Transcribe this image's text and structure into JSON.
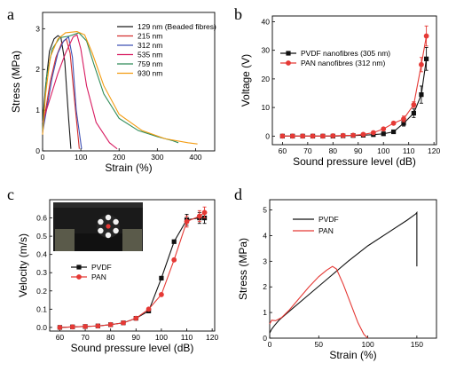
{
  "chart_data": [
    {
      "panel": "a",
      "type": "line",
      "xlabel": "Strain (%)",
      "ylabel": "Stress (MPa)",
      "xlim": [
        0,
        450
      ],
      "ylim": [
        0,
        3.4
      ],
      "xticks": [
        0,
        100,
        200,
        300,
        400
      ],
      "yticks": [
        0,
        1,
        2,
        3
      ],
      "legend": "top-right",
      "series": [
        {
          "name": "129 nm (Beaded fibres)",
          "color": "#1a1a1a",
          "points": [
            [
              0,
              0.7
            ],
            [
              8,
              1.6
            ],
            [
              18,
              2.45
            ],
            [
              30,
              2.75
            ],
            [
              40,
              2.83
            ],
            [
              48,
              2.78
            ],
            [
              58,
              2.2
            ],
            [
              68,
              0.8
            ],
            [
              74,
              0.05
            ]
          ]
        },
        {
          "name": "215 nm",
          "color": "#d32f2f",
          "points": [
            [
              0,
              0.5
            ],
            [
              8,
              1.0
            ],
            [
              20,
              1.7
            ],
            [
              35,
              2.3
            ],
            [
              50,
              2.65
            ],
            [
              62,
              2.75
            ],
            [
              72,
              2.4
            ],
            [
              84,
              1.2
            ],
            [
              96,
              0.05
            ]
          ]
        },
        {
          "name": "312 nm",
          "color": "#3f51b5",
          "points": [
            [
              0,
              0.45
            ],
            [
              12,
              1.1
            ],
            [
              25,
              1.8
            ],
            [
              40,
              2.4
            ],
            [
              55,
              2.7
            ],
            [
              68,
              2.8
            ],
            [
              78,
              2.3
            ],
            [
              88,
              1.0
            ],
            [
              102,
              0.05
            ]
          ]
        },
        {
          "name": "535 nm",
          "color": "#d81b60",
          "points": [
            [
              0,
              0.7
            ],
            [
              20,
              1.3
            ],
            [
              40,
              1.9
            ],
            [
              60,
              2.4
            ],
            [
              80,
              2.8
            ],
            [
              90,
              2.85
            ],
            [
              100,
              2.5
            ],
            [
              115,
              1.6
            ],
            [
              140,
              0.7
            ],
            [
              175,
              0.2
            ],
            [
              195,
              0.05
            ]
          ]
        },
        {
          "name": "759 nm",
          "color": "#2e8b57",
          "points": [
            [
              0,
              0.5
            ],
            [
              10,
              1.8
            ],
            [
              25,
              2.5
            ],
            [
              45,
              2.78
            ],
            [
              70,
              2.82
            ],
            [
              95,
              2.9
            ],
            [
              115,
              2.7
            ],
            [
              135,
              2.1
            ],
            [
              160,
              1.4
            ],
            [
              200,
              0.8
            ],
            [
              250,
              0.5
            ],
            [
              300,
              0.35
            ],
            [
              340,
              0.25
            ],
            [
              355,
              0.2
            ]
          ]
        },
        {
          "name": "930 nm",
          "color": "#f39c12",
          "points": [
            [
              0,
              0.4
            ],
            [
              8,
              1.4
            ],
            [
              20,
              2.3
            ],
            [
              40,
              2.75
            ],
            [
              60,
              2.9
            ],
            [
              90,
              2.93
            ],
            [
              110,
              2.85
            ],
            [
              130,
              2.4
            ],
            [
              160,
              1.6
            ],
            [
              200,
              0.9
            ],
            [
              260,
              0.5
            ],
            [
              320,
              0.3
            ],
            [
              380,
              0.2
            ],
            [
              405,
              0.17
            ]
          ]
        }
      ]
    },
    {
      "panel": "b",
      "type": "line",
      "xlabel": "Sound pressure level (dB)",
      "ylabel": "Voltage (V)",
      "xlim": [
        56,
        121
      ],
      "ylim": [
        -3,
        42
      ],
      "xticks": [
        60,
        70,
        80,
        90,
        100,
        110,
        120
      ],
      "yticks": [
        0,
        10,
        20,
        30,
        40
      ],
      "legend": "top-left",
      "series": [
        {
          "name": "PVDF nanofibres (305 nm)",
          "color": "#111111",
          "marker": "square",
          "x": [
            60,
            64,
            68,
            72,
            76,
            80,
            84,
            88,
            92,
            96,
            100,
            104,
            108,
            112,
            115,
            117
          ],
          "y": [
            0,
            0,
            0,
            0,
            0,
            0,
            0.1,
            0.2,
            0.3,
            0.5,
            0.8,
            1.5,
            4.5,
            8.0,
            14.5,
            27.0
          ],
          "err": [
            0,
            0,
            0,
            0,
            0,
            0,
            0,
            0,
            0,
            0,
            0.3,
            0.5,
            1.0,
            1.5,
            3.0,
            4.0
          ]
        },
        {
          "name": "PAN nanofibres (312 nm)",
          "color": "#e53935",
          "marker": "circle",
          "x": [
            60,
            64,
            68,
            72,
            76,
            80,
            84,
            88,
            92,
            96,
            100,
            104,
            108,
            112,
            115,
            117
          ],
          "y": [
            0,
            0,
            0,
            0,
            0,
            0.1,
            0.2,
            0.3,
            0.6,
            1.2,
            2.5,
            4.5,
            6.0,
            11.0,
            25.0,
            35.0
          ],
          "err": [
            0,
            0,
            0,
            0,
            0,
            0,
            0,
            0,
            0,
            0,
            0.3,
            0.5,
            1.0,
            1.0,
            2.5,
            3.5
          ]
        }
      ]
    },
    {
      "panel": "c",
      "type": "line",
      "xlabel": "Sound pressure level (dB)",
      "ylabel": "Velocity (m/s)",
      "xlim": [
        56,
        121
      ],
      "ylim": [
        -0.02,
        0.7
      ],
      "xticks": [
        60,
        70,
        80,
        90,
        100,
        110,
        120
      ],
      "yticks": [
        0.0,
        0.1,
        0.2,
        0.3,
        0.4,
        0.5,
        0.6
      ],
      "legend": "center-left",
      "series": [
        {
          "name": "PVDF",
          "color": "#111111",
          "marker": "square",
          "x": [
            60,
            65,
            70,
            75,
            80,
            85,
            90,
            95,
            100,
            105,
            110,
            115,
            117
          ],
          "y": [
            0,
            0.003,
            0.005,
            0.008,
            0.015,
            0.025,
            0.05,
            0.09,
            0.27,
            0.47,
            0.59,
            0.6,
            0.6
          ],
          "err": [
            0,
            0,
            0,
            0,
            0,
            0,
            0,
            0,
            0,
            0,
            0.03,
            0.03,
            0.03
          ]
        },
        {
          "name": "PAN",
          "color": "#e53935",
          "marker": "circle",
          "x": [
            60,
            65,
            70,
            75,
            80,
            85,
            90,
            95,
            100,
            105,
            110,
            115,
            117
          ],
          "y": [
            0,
            0.003,
            0.005,
            0.008,
            0.015,
            0.025,
            0.05,
            0.1,
            0.18,
            0.37,
            0.58,
            0.61,
            0.63
          ],
          "err": [
            0,
            0,
            0,
            0,
            0,
            0,
            0,
            0,
            0,
            0,
            0.03,
            0.03,
            0.03
          ]
        }
      ]
    },
    {
      "panel": "d",
      "type": "line",
      "xlabel": "Strain (%)",
      "ylabel": "Stress (MPa)",
      "xlim": [
        0,
        170
      ],
      "ylim": [
        0,
        5.4
      ],
      "xticks": [
        0,
        50,
        100,
        150
      ],
      "yticks": [
        0,
        1,
        2,
        3,
        4,
        5
      ],
      "legend": "top-left",
      "series": [
        {
          "name": "PVDF",
          "color": "#111111",
          "points": [
            [
              0,
              0.2
            ],
            [
              2,
              0.35
            ],
            [
              5,
              0.5
            ],
            [
              10,
              0.72
            ],
            [
              20,
              1.05
            ],
            [
              40,
              1.7
            ],
            [
              60,
              2.35
            ],
            [
              80,
              3.0
            ],
            [
              100,
              3.6
            ],
            [
              120,
              4.1
            ],
            [
              140,
              4.6
            ],
            [
              149,
              4.85
            ],
            [
              150,
              4.9
            ],
            [
              150,
              2.8
            ]
          ]
        },
        {
          "name": "PAN",
          "color": "#e53935",
          "points": [
            [
              0,
              0.55
            ],
            [
              2,
              0.7
            ],
            [
              6,
              0.68
            ],
            [
              12,
              0.8
            ],
            [
              20,
              1.1
            ],
            [
              30,
              1.55
            ],
            [
              40,
              2.0
            ],
            [
              50,
              2.4
            ],
            [
              58,
              2.65
            ],
            [
              64,
              2.8
            ],
            [
              68,
              2.7
            ],
            [
              75,
              2.1
            ],
            [
              82,
              1.4
            ],
            [
              90,
              0.6
            ],
            [
              96,
              0.15
            ],
            [
              100,
              0.0
            ]
          ]
        }
      ]
    }
  ]
}
